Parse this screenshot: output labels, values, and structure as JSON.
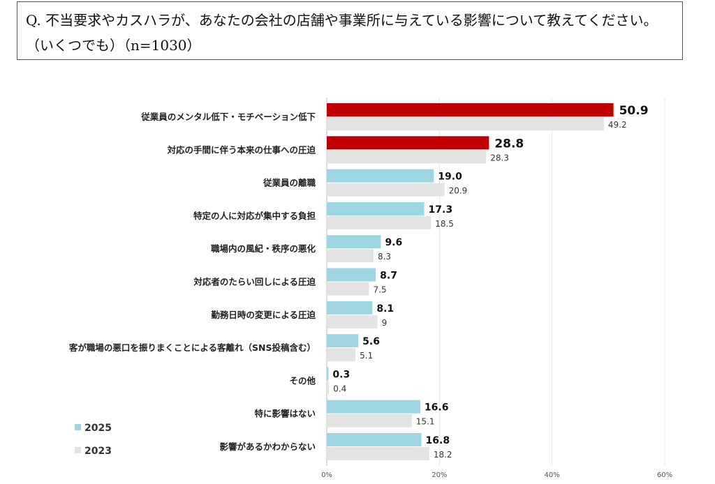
{
  "question": "Q. 不当要求やカスハラが、あなたの会社の店舗や事業所に与えている影響について教えてください。（いくつでも）（n=1030）",
  "chart_data": {
    "type": "bar",
    "orientation": "horizontal",
    "title": "Q. 不当要求やカスハラが、あなたの会社の店舗や事業所に与えている影響について教えてください。（いくつでも）（n=1030）",
    "categories": [
      "従業員のメンタル低下・モチベーション低下",
      "対応の手間に伴う本来の仕事への圧迫",
      "従業員の離職",
      "特定の人に対応が集中する負担",
      "職場内の風紀・秩序の悪化",
      "対応者のたらい回しによる圧迫",
      "勤務日時の変更による圧迫",
      "客が職場の悪口を振りまくことによる客離れ（SNS投稿含む）",
      "その他",
      "特に影響はない",
      "影響があるかわからない"
    ],
    "series": [
      {
        "name": "2025",
        "values": [
          50.9,
          28.8,
          19.0,
          17.3,
          9.6,
          8.7,
          8.1,
          5.6,
          0.3,
          16.6,
          16.8
        ],
        "labels": [
          "50.9",
          "28.8",
          "19.0",
          "17.3",
          "9.6",
          "8.7",
          "8.1",
          "5.6",
          "0.3",
          "16.6",
          "16.8"
        ],
        "color": "#9dd5e2",
        "highlight_color": "#c00000",
        "highlighted": [
          0,
          1
        ]
      },
      {
        "name": "2023",
        "values": [
          49.2,
          28.3,
          20.9,
          18.5,
          8.3,
          7.5,
          9,
          5.1,
          0.4,
          15.1,
          18.2
        ],
        "labels": [
          "49.2",
          "28.3",
          "20.9",
          "18.5",
          "8.3",
          "7.5",
          "9",
          "5.1",
          "0.4",
          "15.1",
          "18.2"
        ],
        "color": "#e3e3e3"
      }
    ],
    "xlim": [
      0,
      60
    ],
    "xticks": [
      "0%",
      "20%",
      "40%",
      "60%"
    ],
    "xtick_values": [
      0,
      20,
      40,
      60
    ],
    "grid": true,
    "legend": "bottom-left",
    "xlabel": "",
    "ylabel": ""
  }
}
